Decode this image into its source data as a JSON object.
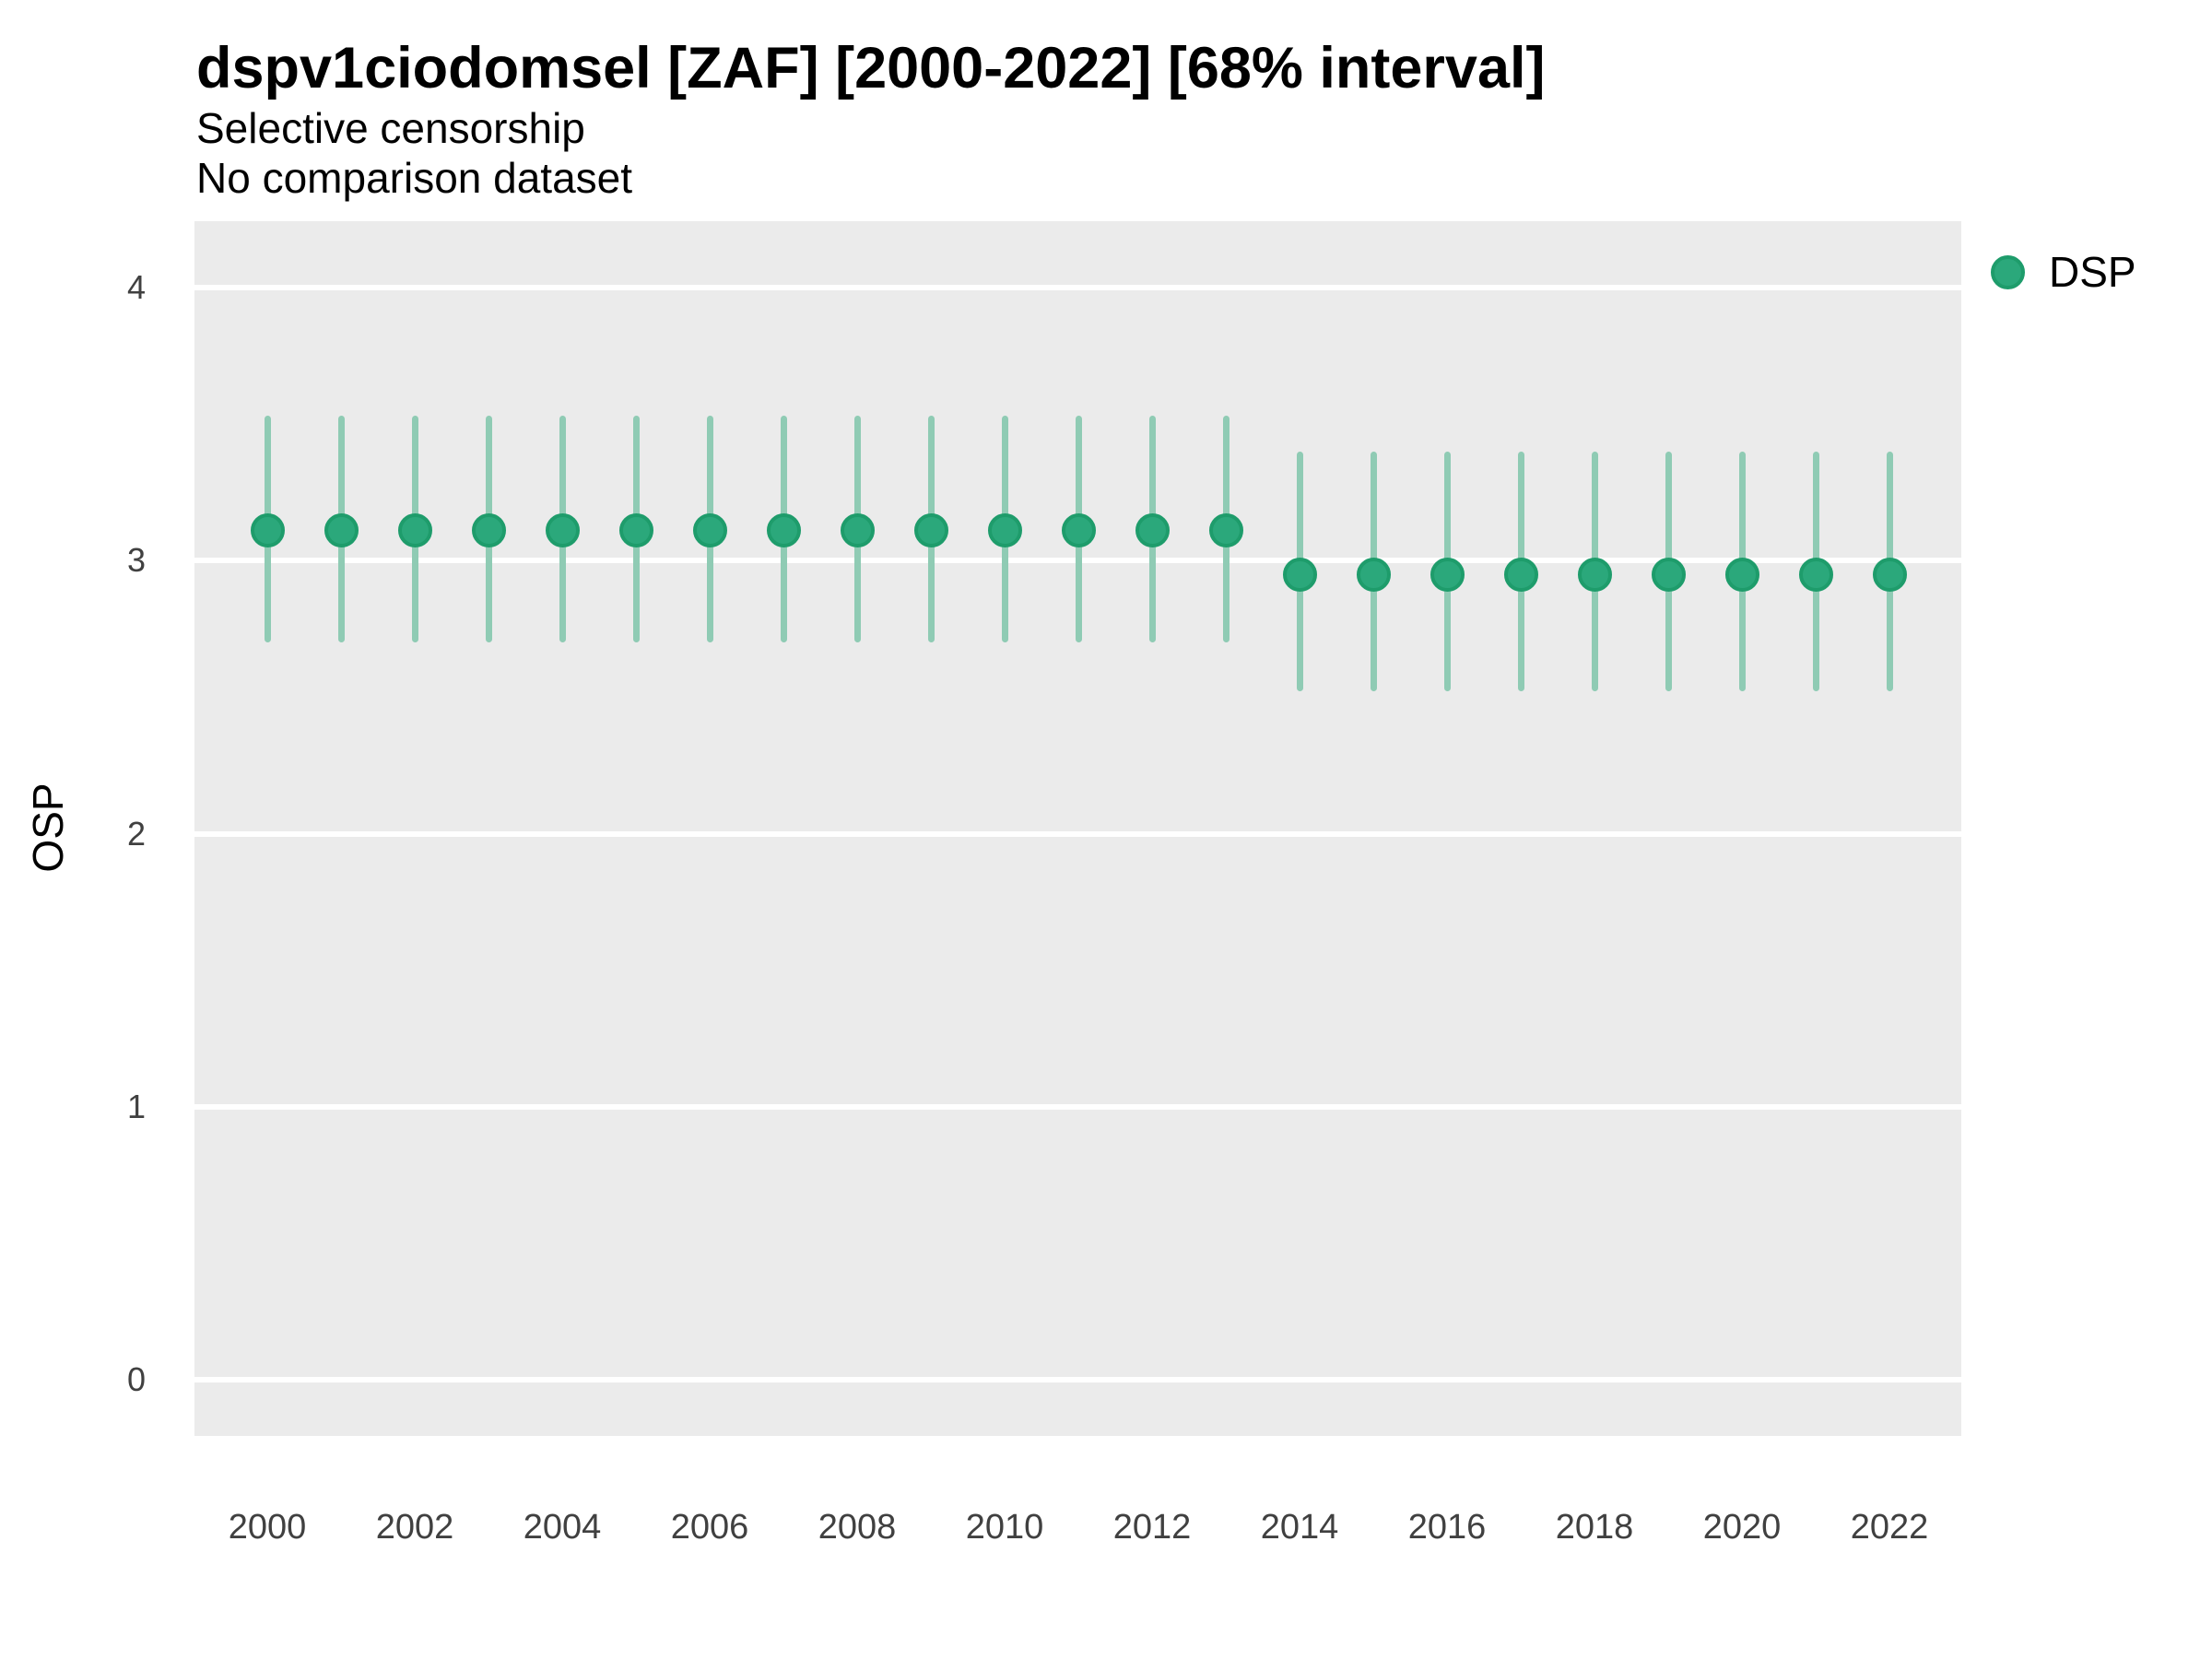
{
  "header": {
    "title": "dspv1ciodomsel [ZAF] [2000-2022] [68% interval]",
    "subtitle_line1": "Selective censorship",
    "subtitle_line2": "No comparison dataset"
  },
  "axes": {
    "y_title": "OSP",
    "y_ticks": [
      {
        "label": "4",
        "value": 4
      },
      {
        "label": "3",
        "value": 3
      },
      {
        "label": "2",
        "value": 2
      },
      {
        "label": "1",
        "value": 1
      },
      {
        "label": "0",
        "value": 0
      }
    ],
    "x_ticks": [
      {
        "label": "2000",
        "value": 2000
      },
      {
        "label": "2002",
        "value": 2002
      },
      {
        "label": "2004",
        "value": 2004
      },
      {
        "label": "2006",
        "value": 2006
      },
      {
        "label": "2008",
        "value": 2008
      },
      {
        "label": "2010",
        "value": 2010
      },
      {
        "label": "2012",
        "value": 2012
      },
      {
        "label": "2014",
        "value": 2014
      },
      {
        "label": "2016",
        "value": 2016
      },
      {
        "label": "2018",
        "value": 2018
      },
      {
        "label": "2020",
        "value": 2020
      },
      {
        "label": "2022",
        "value": 2022
      }
    ]
  },
  "legend": {
    "items": [
      {
        "label": "DSP",
        "color": "#2BA87B"
      }
    ]
  },
  "colors": {
    "point_fill": "#2BA87B",
    "point_stroke": "#1E9C6B",
    "interval": "#8FCBB4",
    "panel_background": "#EBEBEB",
    "gridline": "#FFFFFF"
  },
  "chart_data": {
    "type": "scatter",
    "subtype": "pointrange",
    "title": "dspv1ciodomsel [ZAF] [2000-2022] [68% interval]",
    "interval_level": "68%",
    "xlabel": "",
    "ylabel": "OSP",
    "ylim": [
      -0.26,
      4.24
    ],
    "y_gridlines": [
      0,
      1,
      2,
      3,
      4
    ],
    "legend_position": "right",
    "series": [
      {
        "name": "DSP",
        "points": [
          {
            "year": 2000,
            "estimate": 3.11,
            "lower": 2.7,
            "upper": 3.53
          },
          {
            "year": 2001,
            "estimate": 3.11,
            "lower": 2.7,
            "upper": 3.53
          },
          {
            "year": 2002,
            "estimate": 3.11,
            "lower": 2.7,
            "upper": 3.53
          },
          {
            "year": 2003,
            "estimate": 3.11,
            "lower": 2.7,
            "upper": 3.53
          },
          {
            "year": 2004,
            "estimate": 3.11,
            "lower": 2.7,
            "upper": 3.53
          },
          {
            "year": 2005,
            "estimate": 3.11,
            "lower": 2.7,
            "upper": 3.53
          },
          {
            "year": 2006,
            "estimate": 3.11,
            "lower": 2.7,
            "upper": 3.53
          },
          {
            "year": 2007,
            "estimate": 3.11,
            "lower": 2.7,
            "upper": 3.53
          },
          {
            "year": 2008,
            "estimate": 3.11,
            "lower": 2.7,
            "upper": 3.53
          },
          {
            "year": 2009,
            "estimate": 3.11,
            "lower": 2.7,
            "upper": 3.53
          },
          {
            "year": 2010,
            "estimate": 3.11,
            "lower": 2.7,
            "upper": 3.53
          },
          {
            "year": 2011,
            "estimate": 3.11,
            "lower": 2.7,
            "upper": 3.53
          },
          {
            "year": 2012,
            "estimate": 3.11,
            "lower": 2.7,
            "upper": 3.53
          },
          {
            "year": 2013,
            "estimate": 3.11,
            "lower": 2.7,
            "upper": 3.53
          },
          {
            "year": 2014,
            "estimate": 2.95,
            "lower": 2.52,
            "upper": 3.4
          },
          {
            "year": 2015,
            "estimate": 2.95,
            "lower": 2.52,
            "upper": 3.4
          },
          {
            "year": 2016,
            "estimate": 2.95,
            "lower": 2.52,
            "upper": 3.4
          },
          {
            "year": 2017,
            "estimate": 2.95,
            "lower": 2.52,
            "upper": 3.4
          },
          {
            "year": 2018,
            "estimate": 2.95,
            "lower": 2.52,
            "upper": 3.4
          },
          {
            "year": 2019,
            "estimate": 2.95,
            "lower": 2.52,
            "upper": 3.4
          },
          {
            "year": 2020,
            "estimate": 2.95,
            "lower": 2.52,
            "upper": 3.4
          },
          {
            "year": 2021,
            "estimate": 2.95,
            "lower": 2.52,
            "upper": 3.4
          },
          {
            "year": 2022,
            "estimate": 2.95,
            "lower": 2.52,
            "upper": 3.4
          }
        ]
      }
    ]
  }
}
